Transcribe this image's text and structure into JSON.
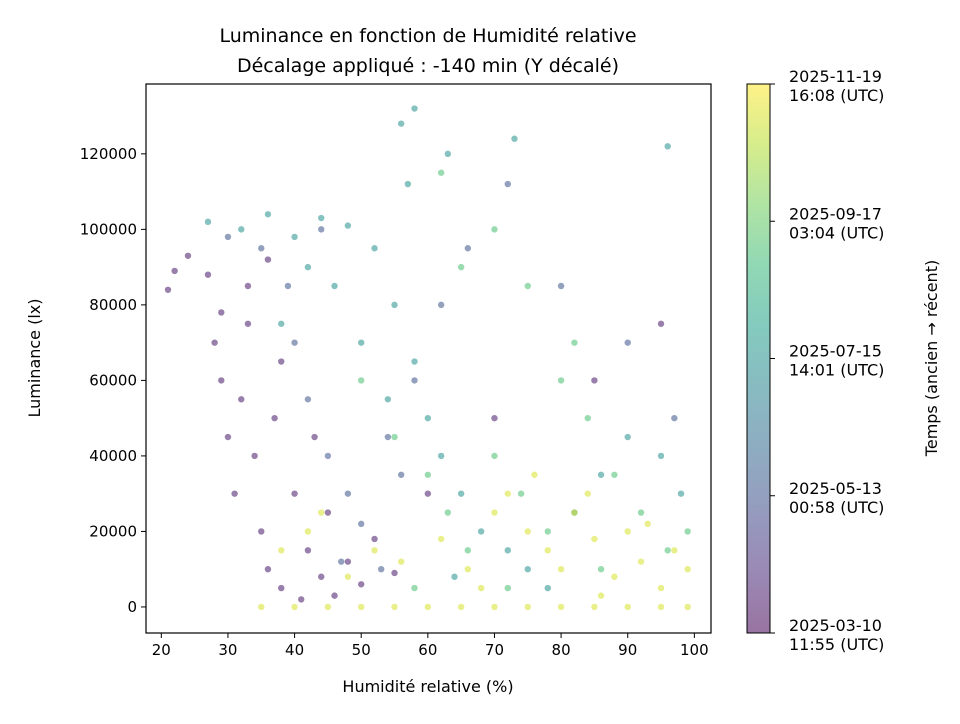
{
  "chart_data": {
    "type": "scatter",
    "title": "Luminance en fonction de Humidité relative",
    "subtitle": "Décalage appliqué : -140 min (Y décalé)",
    "xlabel": "Humidité relative (%)",
    "ylabel": "Luminance (lx)",
    "xlim": [
      17.7,
      102.5
    ],
    "ylim": [
      -6900,
      138500
    ],
    "xticks": [
      20,
      30,
      40,
      50,
      60,
      70,
      80,
      90,
      100
    ],
    "yticks": [
      0,
      20000,
      40000,
      60000,
      80000,
      100000,
      120000
    ],
    "grid": false,
    "colormap": "viridis",
    "alpha": 0.55,
    "colorbar": {
      "label": "Temps (ancien → récent)",
      "range": [
        "2025-03-10T11:55:00Z",
        "2025-11-19T16:08:00Z"
      ],
      "ticks": [
        {
          "time": "2025-03-10T11:55:00Z",
          "line1": "2025-03-10",
          "line2": "11:55 (UTC)"
        },
        {
          "time": "2025-05-13T00:58:00Z",
          "line1": "2025-05-13",
          "line2": "00:58 (UTC)"
        },
        {
          "time": "2025-07-15T14:01:00Z",
          "line1": "2025-07-15",
          "line2": "14:01 (UTC)"
        },
        {
          "time": "2025-09-17T03:04:00Z",
          "line1": "2025-09-17",
          "line2": "03:04 (UTC)"
        },
        {
          "time": "2025-11-19T16:08:00Z",
          "line1": "2025-11-19",
          "line2": "16:08 (UTC)"
        }
      ]
    },
    "groups": [
      {
        "time": "2025-03-25T00:00:00Z",
        "points": [
          [
            21,
            84000
          ],
          [
            22,
            89000
          ],
          [
            24,
            93000
          ],
          [
            27,
            88000
          ],
          [
            28,
            70000
          ],
          [
            29,
            60000
          ],
          [
            30,
            45000
          ],
          [
            31,
            30000
          ],
          [
            32,
            55000
          ],
          [
            33,
            75000
          ],
          [
            34,
            40000
          ],
          [
            35,
            20000
          ],
          [
            36,
            10000
          ],
          [
            37,
            50000
          ],
          [
            38,
            65000
          ],
          [
            38,
            5000
          ],
          [
            40,
            30000
          ],
          [
            41,
            2000
          ],
          [
            42,
            15000
          ],
          [
            43,
            45000
          ],
          [
            44,
            8000
          ],
          [
            45,
            25000
          ],
          [
            46,
            3000
          ],
          [
            48,
            12000
          ],
          [
            50,
            6000
          ],
          [
            52,
            18000
          ],
          [
            55,
            9000
          ],
          [
            60,
            30000
          ],
          [
            70,
            50000
          ],
          [
            85,
            60000
          ],
          [
            95,
            75000
          ],
          [
            33,
            85000
          ],
          [
            29,
            78000
          ],
          [
            36,
            92000
          ]
        ]
      },
      {
        "time": "2025-05-15T00:00:00Z",
        "points": [
          [
            30,
            98000
          ],
          [
            35,
            95000
          ],
          [
            40,
            70000
          ],
          [
            42,
            55000
          ],
          [
            45,
            40000
          ],
          [
            48,
            30000
          ],
          [
            50,
            22000
          ],
          [
            53,
            10000
          ],
          [
            56,
            35000
          ],
          [
            58,
            60000
          ],
          [
            62,
            80000
          ],
          [
            66,
            95000
          ],
          [
            72,
            112000
          ],
          [
            80,
            85000
          ],
          [
            90,
            70000
          ],
          [
            97,
            50000
          ],
          [
            44,
            100000
          ],
          [
            39,
            85000
          ],
          [
            47,
            12000
          ],
          [
            54,
            45000
          ]
        ]
      },
      {
        "time": "2025-07-15T00:00:00Z",
        "points": [
          [
            27,
            102000
          ],
          [
            32,
            100000
          ],
          [
            36,
            104000
          ],
          [
            40,
            98000
          ],
          [
            44,
            103000
          ],
          [
            48,
            101000
          ],
          [
            52,
            95000
          ],
          [
            55,
            80000
          ],
          [
            58,
            65000
          ],
          [
            60,
            50000
          ],
          [
            62,
            40000
          ],
          [
            65,
            30000
          ],
          [
            68,
            20000
          ],
          [
            72,
            15000
          ],
          [
            75,
            10000
          ],
          [
            78,
            5000
          ],
          [
            82,
            25000
          ],
          [
            86,
            35000
          ],
          [
            90,
            45000
          ],
          [
            95,
            40000
          ],
          [
            98,
            30000
          ],
          [
            50,
            70000
          ],
          [
            46,
            85000
          ],
          [
            42,
            90000
          ],
          [
            38,
            75000
          ],
          [
            57,
            112000
          ],
          [
            63,
            120000
          ],
          [
            73,
            124000
          ],
          [
            56,
            128000
          ],
          [
            58,
            132000
          ],
          [
            96,
            122000
          ],
          [
            54,
            55000
          ],
          [
            64,
            8000
          ]
        ]
      },
      {
        "time": "2025-09-05T00:00:00Z",
        "points": [
          [
            50,
            60000
          ],
          [
            55,
            45000
          ],
          [
            60,
            35000
          ],
          [
            63,
            25000
          ],
          [
            66,
            15000
          ],
          [
            70,
            40000
          ],
          [
            74,
            30000
          ],
          [
            78,
            20000
          ],
          [
            80,
            60000
          ],
          [
            84,
            50000
          ],
          [
            88,
            35000
          ],
          [
            92,
            25000
          ],
          [
            96,
            15000
          ],
          [
            65,
            90000
          ],
          [
            70,
            100000
          ],
          [
            75,
            85000
          ],
          [
            62,
            115000
          ],
          [
            82,
            70000
          ],
          [
            58,
            5000
          ],
          [
            72,
            5000
          ],
          [
            86,
            10000
          ],
          [
            99,
            20000
          ]
        ]
      },
      {
        "time": "2025-11-05T00:00:00Z",
        "points": [
          [
            35,
            0
          ],
          [
            40,
            0
          ],
          [
            45,
            0
          ],
          [
            50,
            0
          ],
          [
            55,
            0
          ],
          [
            60,
            0
          ],
          [
            65,
            0
          ],
          [
            70,
            0
          ],
          [
            75,
            0
          ],
          [
            80,
            0
          ],
          [
            85,
            0
          ],
          [
            90,
            0
          ],
          [
            95,
            0
          ],
          [
            99,
            0
          ],
          [
            38,
            15000
          ],
          [
            42,
            20000
          ],
          [
            44,
            25000
          ],
          [
            48,
            8000
          ],
          [
            52,
            15000
          ],
          [
            56,
            12000
          ],
          [
            62,
            18000
          ],
          [
            66,
            10000
          ],
          [
            70,
            25000
          ],
          [
            72,
            30000
          ],
          [
            75,
            20000
          ],
          [
            78,
            15000
          ],
          [
            80,
            10000
          ],
          [
            82,
            25000
          ],
          [
            85,
            18000
          ],
          [
            88,
            8000
          ],
          [
            90,
            20000
          ],
          [
            92,
            12000
          ],
          [
            95,
            5000
          ],
          [
            97,
            15000
          ],
          [
            99,
            10000
          ],
          [
            76,
            35000
          ],
          [
            84,
            30000
          ],
          [
            68,
            5000
          ],
          [
            86,
            3000
          ],
          [
            93,
            22000
          ]
        ]
      }
    ]
  }
}
